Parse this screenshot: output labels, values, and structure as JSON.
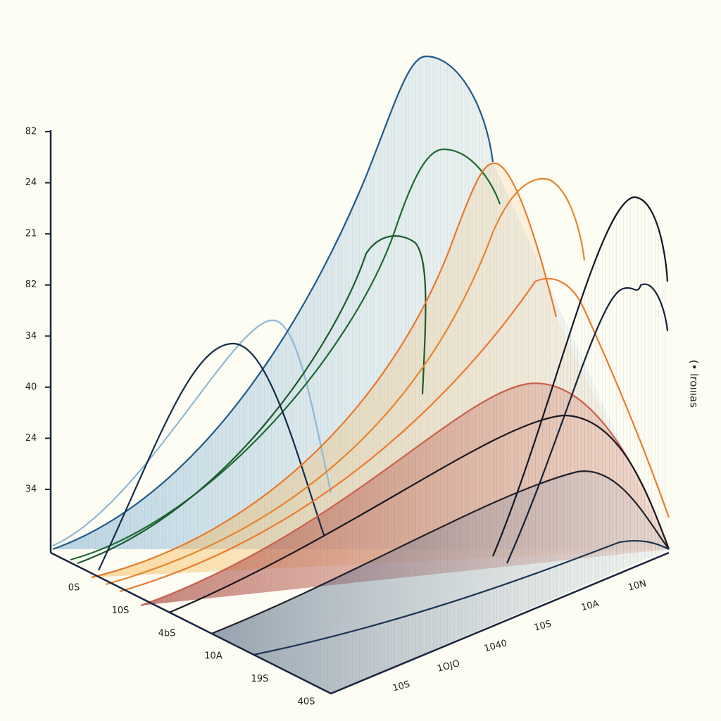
{
  "chart_data": {
    "type": "ridgeline",
    "y_labels": [
      "82",
      "24",
      "21",
      "82",
      "34",
      "40",
      "24",
      "34"
    ],
    "x_labels": [
      "0S",
      "10S",
      "4bS",
      "10A",
      "19S",
      "40S"
    ],
    "depth_labels": [
      "10S",
      "1OJO",
      "1040",
      "10S",
      "10A",
      "10N"
    ],
    "side_label": "(• lroıııas"
  }
}
